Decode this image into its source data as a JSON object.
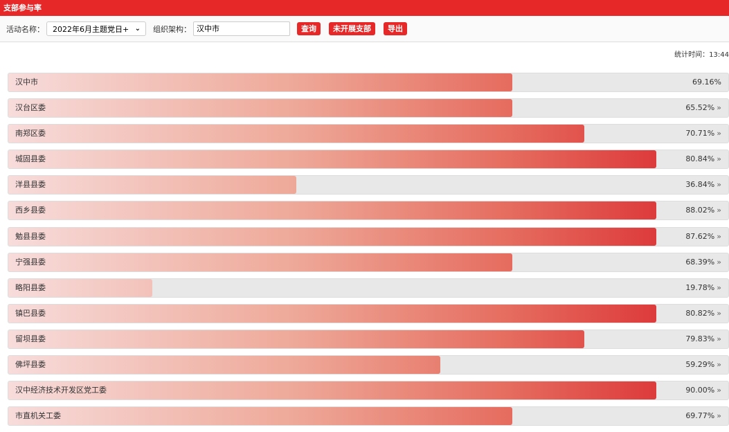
{
  "header": {
    "title": "支部参与率"
  },
  "toolbar": {
    "activity_label": "活动名称：",
    "activity_value": "2022年6月主题党日+",
    "org_label": "组织架构：",
    "org_value": "汉中市",
    "query": "查询",
    "not_started": "未开展支部",
    "export": "导出"
  },
  "stat_time": "统计时间：13:44",
  "colors": {
    "accent": "#e62828"
  },
  "rows": [
    {
      "name": "汉中市",
      "percent": "69.16%",
      "value": 69.16,
      "arrow": ""
    },
    {
      "name": "汉台区委",
      "percent": "65.52%",
      "value": 65.52,
      "arrow": "»"
    },
    {
      "name": "南郑区委",
      "percent": "70.71%",
      "value": 70.71,
      "arrow": "»"
    },
    {
      "name": "城固县委",
      "percent": "80.84%",
      "value": 80.84,
      "arrow": "»"
    },
    {
      "name": "洋县县委",
      "percent": "36.84%",
      "value": 36.84,
      "arrow": "»"
    },
    {
      "name": "西乡县委",
      "percent": "88.02%",
      "value": 88.02,
      "arrow": "»"
    },
    {
      "name": "勉县县委",
      "percent": "87.62%",
      "value": 87.62,
      "arrow": "»"
    },
    {
      "name": "宁强县委",
      "percent": "68.39%",
      "value": 68.39,
      "arrow": "»"
    },
    {
      "name": "略阳县委",
      "percent": "19.78%",
      "value": 19.78,
      "arrow": "»"
    },
    {
      "name": "镇巴县委",
      "percent": "80.82%",
      "value": 80.82,
      "arrow": "»"
    },
    {
      "name": "留坝县委",
      "percent": "79.83%",
      "value": 79.83,
      "arrow": "»"
    },
    {
      "name": "佛坪县委",
      "percent": "59.29%",
      "value": 59.29,
      "arrow": "»"
    },
    {
      "name": "汉中经济技术开发区党工委",
      "percent": "90.00%",
      "value": 90.0,
      "arrow": "»"
    },
    {
      "name": "市直机关工委",
      "percent": "69.77%",
      "value": 69.77,
      "arrow": "»"
    }
  ]
}
